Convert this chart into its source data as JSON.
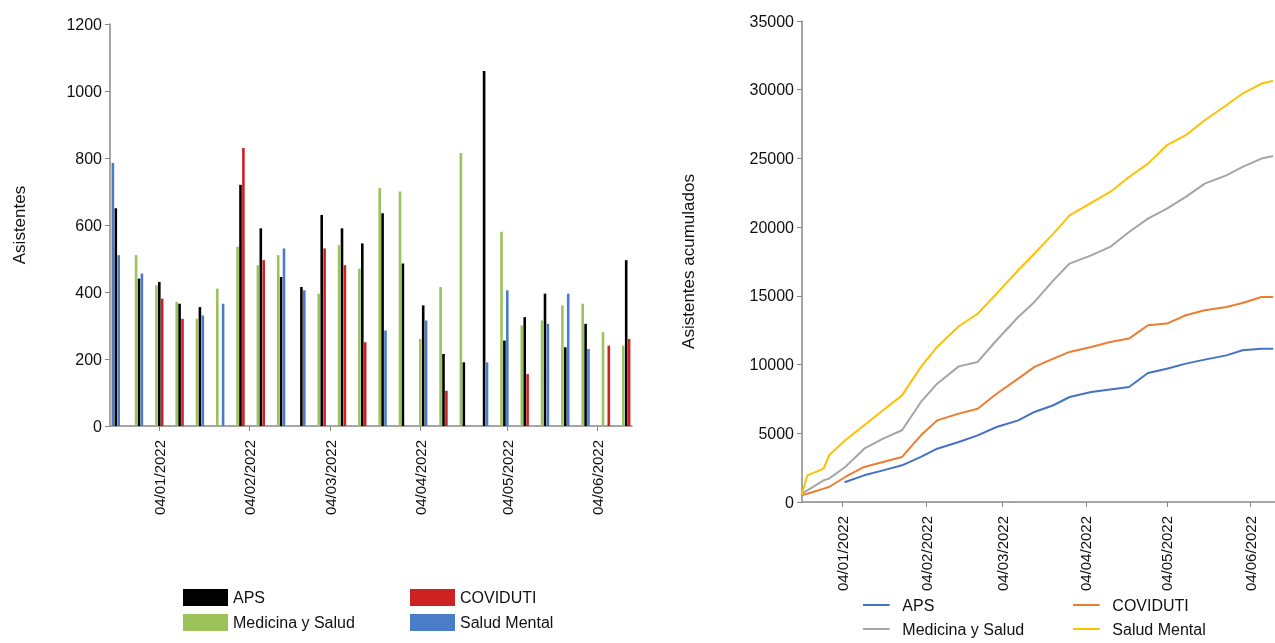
{
  "chart_data": [
    {
      "type": "bar",
      "ylabel": "Asistentes",
      "xlim": [
        "2021-12-18",
        "2022-06-16"
      ],
      "xticks": [
        {
          "value": "2022-01-04",
          "label": "04/01/2022"
        },
        {
          "value": "2022-02-04",
          "label": "04/02/2022"
        },
        {
          "value": "2022-03-04",
          "label": "04/03/2022"
        },
        {
          "value": "2022-04-04",
          "label": "04/04/2022"
        },
        {
          "value": "2022-05-04",
          "label": "04/05/2022"
        },
        {
          "value": "2022-06-04",
          "label": "04/06/2022"
        }
      ],
      "ylim": [
        0,
        1200
      ],
      "yticks": [
        0,
        200,
        400,
        600,
        800,
        1000,
        1200
      ],
      "grid": false,
      "legend": "bottom",
      "series": [
        {
          "name": "APS",
          "color": "#000000",
          "x": [
            "2021-12-20",
            "2021-12-28",
            "2022-01-04",
            "2022-01-11",
            "2022-01-18",
            "2022-02-01",
            "2022-02-08",
            "2022-02-15",
            "2022-02-22",
            "2022-03-01",
            "2022-03-08",
            "2022-03-15",
            "2022-03-22",
            "2022-03-29",
            "2022-04-05",
            "2022-04-12",
            "2022-04-19",
            "2022-04-26",
            "2022-05-03",
            "2022-05-10",
            "2022-05-17",
            "2022-05-24",
            "2022-05-31",
            "2022-06-14"
          ],
          "values": [
            650,
            440,
            430,
            365,
            355,
            720,
            590,
            445,
            415,
            630,
            590,
            545,
            635,
            485,
            360,
            215,
            190,
            1060,
            255,
            325,
            395,
            235,
            305,
            495
          ]
        },
        {
          "name": "COVIDUTI",
          "color": "#cc2222",
          "x": [
            "2022-01-05",
            "2022-01-12",
            "2022-02-02",
            "2022-02-09",
            "2022-03-02",
            "2022-03-09",
            "2022-03-16",
            "2022-04-13",
            "2022-05-11",
            "2022-06-08",
            "2022-06-15"
          ],
          "values": [
            380,
            320,
            830,
            495,
            530,
            480,
            250,
            105,
            155,
            240,
            260
          ]
        },
        {
          "name": "Medicina y Salud",
          "color": "#9bc35a",
          "x": [
            "2021-12-27",
            "2022-01-03",
            "2022-01-10",
            "2022-01-17",
            "2022-01-24",
            "2022-01-31",
            "2022-02-07",
            "2022-02-14",
            "2022-02-28",
            "2022-03-07",
            "2022-03-14",
            "2022-03-21",
            "2022-03-28",
            "2022-04-04",
            "2022-04-11",
            "2022-04-18",
            "2022-05-02",
            "2022-05-09",
            "2022-05-16",
            "2022-05-23",
            "2022-05-30",
            "2022-06-06",
            "2022-06-13"
          ],
          "values": [
            510,
            420,
            370,
            320,
            410,
            535,
            480,
            510,
            395,
            540,
            470,
            710,
            700,
            260,
            415,
            815,
            580,
            300,
            315,
            360,
            365,
            280,
            240
          ]
        },
        {
          "name": "Salud Mental",
          "color": "#4a7cc7",
          "x": [
            "2021-12-19",
            "2021-12-21",
            "2021-12-29",
            "2022-01-19",
            "2022-01-26",
            "2022-02-16",
            "2022-02-23",
            "2022-03-23",
            "2022-04-06",
            "2022-04-27",
            "2022-05-04",
            "2022-05-18",
            "2022-05-25",
            "2022-06-01"
          ],
          "values": [
            785,
            510,
            455,
            330,
            365,
            530,
            405,
            285,
            315,
            190,
            405,
            305,
            395,
            230
          ]
        }
      ]
    },
    {
      "type": "line",
      "ylabel": "Asistentes acumulados",
      "marker": "none",
      "xlim": [
        "2021-12-20",
        "2022-06-13"
      ],
      "xticks": [
        {
          "value": "2022-01-04",
          "label": "04/01/2022"
        },
        {
          "value": "2022-02-04",
          "label": "04/02/2022"
        },
        {
          "value": "2022-03-04",
          "label": "04/03/2022"
        },
        {
          "value": "2022-04-04",
          "label": "04/04/2022"
        },
        {
          "value": "2022-05-04",
          "label": "04/05/2022"
        },
        {
          "value": "2022-06-04",
          "label": "04/06/2022"
        }
      ],
      "ylim": [
        0,
        35000
      ],
      "yticks": [
        0,
        5000,
        10000,
        15000,
        20000,
        25000,
        30000,
        35000
      ],
      "grid": false,
      "legend": "bottom",
      "x": [
        "2021-12-20",
        "2021-12-22",
        "2021-12-28",
        "2021-12-30",
        "2022-01-05",
        "2022-01-12",
        "2022-01-19",
        "2022-01-26",
        "2022-02-02",
        "2022-02-08",
        "2022-02-16",
        "2022-02-23",
        "2022-03-02",
        "2022-03-10",
        "2022-03-16",
        "2022-03-23",
        "2022-03-29",
        "2022-04-06",
        "2022-04-13",
        "2022-04-20",
        "2022-04-27",
        "2022-05-04",
        "2022-05-11",
        "2022-05-18",
        "2022-05-26",
        "2022-06-01",
        "2022-06-08",
        "2022-06-12"
      ],
      "series": [
        {
          "name": "APS",
          "color": "#4472c4",
          "values": [
            null,
            null,
            null,
            null,
            1460,
            1940,
            2300,
            2670,
            3280,
            3880,
            4370,
            4850,
            5460,
            5940,
            6550,
            7040,
            7640,
            8010,
            8180,
            8370,
            9390,
            9700,
            10070,
            10360,
            10670,
            11040,
            11160,
            11160
          ]
        },
        {
          "name": "COVIDUTI",
          "color": "#ed7d31",
          "values": [
            500,
            600,
            970,
            1090,
            1820,
            2550,
            2910,
            3280,
            4850,
            5940,
            6430,
            6790,
            7880,
            8980,
            9830,
            10430,
            10920,
            11280,
            11640,
            11890,
            12860,
            12980,
            13590,
            13950,
            14190,
            14480,
            14920,
            14920
          ]
        },
        {
          "name": "Medicina y Salud",
          "color": "#a5a5a5",
          "values": [
            600,
            850,
            1580,
            1700,
            2550,
            3880,
            4610,
            5220,
            7280,
            8610,
            9870,
            10190,
            11770,
            13460,
            14560,
            16130,
            17350,
            17950,
            18560,
            19650,
            20620,
            21350,
            22200,
            23170,
            23770,
            24380,
            24990,
            25160
          ]
        },
        {
          "name": "Salud Mental",
          "color": "#ffc000",
          "values": [
            600,
            1940,
            2430,
            3400,
            4490,
            5580,
            6670,
            7760,
            9830,
            11280,
            12790,
            13700,
            15160,
            16860,
            18080,
            19530,
            20860,
            21760,
            22560,
            23650,
            24620,
            25960,
            26690,
            27780,
            28870,
            29720,
            30450,
            30640
          ]
        }
      ]
    }
  ]
}
